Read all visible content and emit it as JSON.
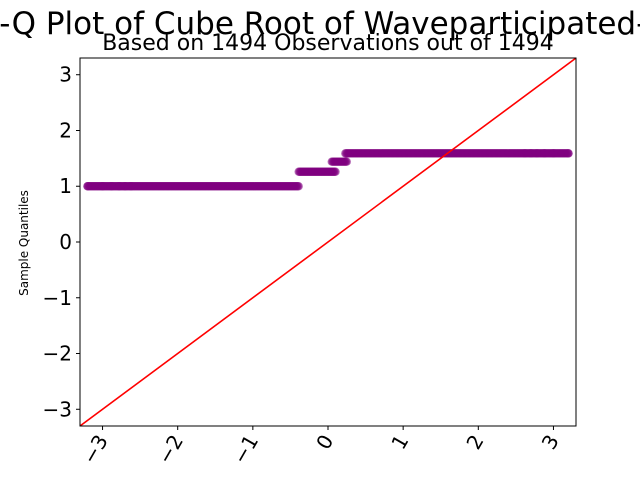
{
  "chart_data": {
    "type": "scatter",
    "title": "Q-Q Plot of Cube Root of Waveparticipated-P",
    "subtitle": "Based on 1494 Observations out of 1494",
    "xlabel": "",
    "ylabel": "Sample Quantiles",
    "xlim": [
      -3.3,
      3.3
    ],
    "ylim": [
      -3.3,
      3.3
    ],
    "xticks": [
      -3,
      -2,
      -1,
      0,
      1,
      2,
      3
    ],
    "yticks": [
      -3,
      -2,
      -1,
      0,
      1,
      2,
      3
    ],
    "xtick_labels": [
      "−3",
      "−2",
      "−1",
      "0",
      "1",
      "2",
      "3"
    ],
    "ytick_labels": [
      "−3",
      "−2",
      "−1",
      "0",
      "1",
      "2",
      "3"
    ],
    "grid": false,
    "point_color": "#800080",
    "line_color": "#ff0000",
    "reference_line": {
      "slope": 1,
      "intercept": 0
    },
    "steps": [
      {
        "x_start": -3.2,
        "x_end": -0.39,
        "y": 1.0
      },
      {
        "x_start": -0.39,
        "x_end": 0.1,
        "y": 1.26
      },
      {
        "x_start": 0.05,
        "x_end": 0.25,
        "y": 1.44
      },
      {
        "x_start": 0.23,
        "x_end": 3.2,
        "y": 1.59
      }
    ],
    "points": [
      {
        "x": -3.2,
        "y": 1.0
      },
      {
        "x": -3.0,
        "y": 1.0
      },
      {
        "x": -2.88,
        "y": 1.0
      },
      {
        "x": -2.78,
        "y": 1.0
      },
      {
        "x": -2.7,
        "y": 1.0
      },
      {
        "x": -2.62,
        "y": 1.0
      },
      {
        "x": 2.62,
        "y": 1.59
      },
      {
        "x": 2.7,
        "y": 1.59
      },
      {
        "x": 2.78,
        "y": 1.59
      },
      {
        "x": 2.88,
        "y": 1.59
      },
      {
        "x": 3.0,
        "y": 1.59
      },
      {
        "x": 3.2,
        "y": 1.59
      }
    ]
  }
}
